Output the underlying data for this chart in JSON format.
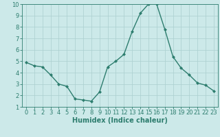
{
  "x": [
    0,
    1,
    2,
    3,
    4,
    5,
    6,
    7,
    8,
    9,
    10,
    11,
    12,
    13,
    14,
    15,
    16,
    17,
    18,
    19,
    20,
    21,
    22,
    23
  ],
  "y": [
    4.9,
    4.6,
    4.5,
    3.8,
    3.0,
    2.8,
    1.7,
    1.6,
    1.5,
    2.3,
    4.5,
    5.0,
    5.6,
    7.6,
    9.2,
    10.0,
    10.0,
    7.8,
    5.4,
    4.4,
    3.8,
    3.1,
    2.9,
    2.4
  ],
  "line_color": "#2d7d6e",
  "marker": "D",
  "marker_size": 2.0,
  "bg_color": "#cce9e9",
  "grid_color": "#aacfcf",
  "xlabel": "Humidex (Indice chaleur)",
  "xlim": [
    -0.5,
    23.5
  ],
  "ylim": [
    1,
    10
  ],
  "yticks": [
    1,
    2,
    3,
    4,
    5,
    6,
    7,
    8,
    9,
    10
  ],
  "xticks": [
    0,
    1,
    2,
    3,
    4,
    5,
    6,
    7,
    8,
    9,
    10,
    11,
    12,
    13,
    14,
    15,
    16,
    17,
    18,
    19,
    20,
    21,
    22,
    23
  ],
  "tick_color": "#2d7d6e",
  "label_fontsize": 7,
  "tick_fontsize": 6
}
